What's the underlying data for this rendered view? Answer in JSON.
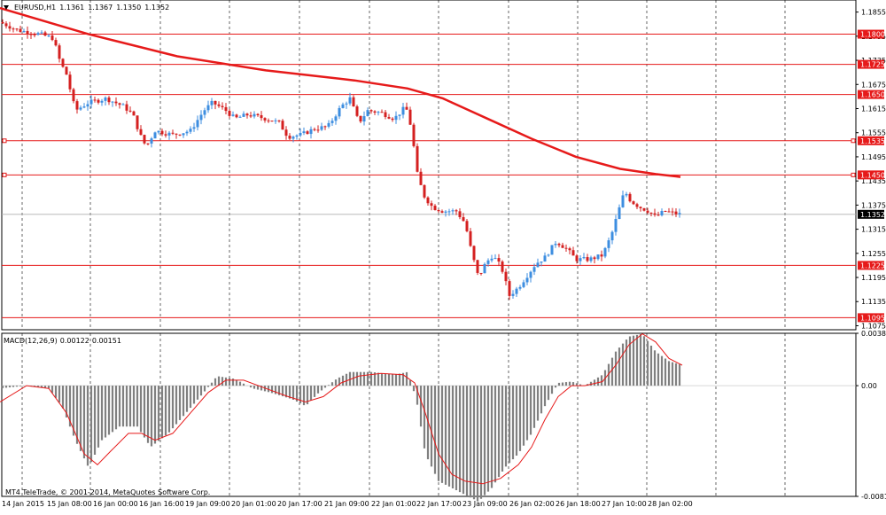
{
  "header": {
    "symbol": "EURUSD,H1",
    "open": "1.1361",
    "high": "1.1367",
    "low": "1.1350",
    "close": "1.1352"
  },
  "macd_header": {
    "name": "MACD(12,26,9)",
    "main": "0.00122",
    "signal": "0.00151"
  },
  "copyright": "MT4 TeleTrade, © 2001-2014, MetaQuotes Software Corp.",
  "colors": {
    "bull": "#3d8ee0",
    "bear": "#d42020",
    "ma": "#e61a1a",
    "level": "#e61a1a",
    "grid": "#000000",
    "histogram": "#808080",
    "signal": "#e61a1a"
  },
  "chart_data": [
    {
      "type": "candlestick",
      "title": "",
      "y_ticks": [
        "1.1855",
        "1.1795",
        "1.1735",
        "1.1675",
        "1.1615",
        "1.1555",
        "1.1495",
        "1.1435",
        "1.1375",
        "1.1315",
        "1.1255",
        "1.1195",
        "1.1135",
        "1.1075"
      ],
      "ylim": [
        1.1065,
        1.1885
      ],
      "x_ticks": [
        "14 Jan 2015",
        "15 Jan 08:00",
        "16 Jan 00:00",
        "16 Jan 16:00",
        "19 Jan 09:00",
        "20 Jan 01:00",
        "20 Jan 17:00",
        "21 Jan 09:00",
        "22 Jan 01:00",
        "22 Jan 17:00",
        "23 Jan 09:00",
        "26 Jan 02:00",
        "26 Jan 18:00",
        "27 Jan 10:00",
        "28 Jan 02:00"
      ],
      "levels": [
        "1.1800",
        "1.1725",
        "1.1650",
        "1.1535",
        "1.1450",
        "1.1225",
        "1.1095"
      ],
      "current_price": "1.1352",
      "grid": true,
      "ma_anchors": [
        [
          0,
          1.1865
        ],
        [
          100,
          1.18
        ],
        [
          200,
          1.1745
        ],
        [
          300,
          1.171
        ],
        [
          400,
          1.1685
        ],
        [
          460,
          1.1665
        ],
        [
          500,
          1.164
        ],
        [
          550,
          1.159
        ],
        [
          600,
          1.154
        ],
        [
          650,
          1.1495
        ],
        [
          700,
          1.1465
        ],
        [
          740,
          1.1452
        ],
        [
          768,
          1.1445
        ]
      ],
      "price_anchors": [
        [
          0,
          1.183
        ],
        [
          20,
          1.181
        ],
        [
          45,
          1.18
        ],
        [
          60,
          1.179
        ],
        [
          68,
          1.173
        ],
        [
          75,
          1.17
        ],
        [
          85,
          1.161
        ],
        [
          100,
          1.163
        ],
        [
          120,
          1.164
        ],
        [
          140,
          1.162
        ],
        [
          150,
          1.16
        ],
        [
          158,
          1.155
        ],
        [
          165,
          1.152
        ],
        [
          175,
          1.156
        ],
        [
          195,
          1.155
        ],
        [
          215,
          1.156
        ],
        [
          230,
          1.161
        ],
        [
          240,
          1.163
        ],
        [
          255,
          1.161
        ],
        [
          265,
          1.159
        ],
        [
          280,
          1.16
        ],
        [
          300,
          1.159
        ],
        [
          315,
          1.158
        ],
        [
          325,
          1.1545
        ],
        [
          340,
          1.155
        ],
        [
          355,
          1.1565
        ],
        [
          370,
          1.157
        ],
        [
          385,
          1.162
        ],
        [
          395,
          1.164
        ],
        [
          405,
          1.158
        ],
        [
          415,
          1.161
        ],
        [
          430,
          1.1605
        ],
        [
          445,
          1.159
        ],
        [
          458,
          1.162
        ],
        [
          465,
          1.156
        ],
        [
          470,
          1.146
        ],
        [
          478,
          1.14
        ],
        [
          488,
          1.137
        ],
        [
          500,
          1.136
        ],
        [
          515,
          1.136
        ],
        [
          525,
          1.133
        ],
        [
          532,
          1.126
        ],
        [
          540,
          1.1195
        ],
        [
          548,
          1.123
        ],
        [
          556,
          1.125
        ],
        [
          566,
          1.122
        ],
        [
          575,
          1.115
        ],
        [
          585,
          1.117
        ],
        [
          595,
          1.12
        ],
        [
          605,
          1.123
        ],
        [
          615,
          1.1245
        ],
        [
          628,
          1.1285
        ],
        [
          640,
          1.1265
        ],
        [
          650,
          1.124
        ],
        [
          665,
          1.124
        ],
        [
          680,
          1.125
        ],
        [
          690,
          1.13
        ],
        [
          698,
          1.136
        ],
        [
          705,
          1.141
        ],
        [
          712,
          1.1385
        ],
        [
          722,
          1.137
        ],
        [
          732,
          1.136
        ],
        [
          740,
          1.1345
        ],
        [
          750,
          1.136
        ],
        [
          760,
          1.1355
        ],
        [
          768,
          1.1352
        ]
      ]
    },
    {
      "type": "bar",
      "title": "",
      "y_ticks": [
        "0.00384",
        "0.00",
        "-0.00812"
      ],
      "ylim": [
        -0.00812,
        0.00384
      ],
      "hist_anchors": [
        [
          0,
          -0.0002
        ],
        [
          30,
          0.0
        ],
        [
          55,
          -0.0002
        ],
        [
          70,
          -0.0015
        ],
        [
          85,
          -0.004
        ],
        [
          100,
          -0.006
        ],
        [
          115,
          -0.004
        ],
        [
          135,
          -0.003
        ],
        [
          155,
          -0.003
        ],
        [
          170,
          -0.0045
        ],
        [
          190,
          -0.0035
        ],
        [
          210,
          -0.002
        ],
        [
          230,
          -0.0005
        ],
        [
          245,
          0.0007
        ],
        [
          265,
          0.0005
        ],
        [
          285,
          -0.0002
        ],
        [
          305,
          -0.0005
        ],
        [
          330,
          -0.001
        ],
        [
          345,
          -0.0015
        ],
        [
          360,
          -0.0005
        ],
        [
          380,
          0.0005
        ],
        [
          395,
          0.001
        ],
        [
          420,
          0.001
        ],
        [
          445,
          0.0008
        ],
        [
          460,
          0.001
        ],
        [
          470,
          -0.001
        ],
        [
          480,
          -0.005
        ],
        [
          495,
          -0.007
        ],
        [
          510,
          -0.0075
        ],
        [
          525,
          -0.008
        ],
        [
          540,
          -0.0085
        ],
        [
          555,
          -0.0075
        ],
        [
          570,
          -0.006
        ],
        [
          585,
          -0.005
        ],
        [
          600,
          -0.0035
        ],
        [
          615,
          -0.0015
        ],
        [
          630,
          0.0002
        ],
        [
          645,
          0.0003
        ],
        [
          660,
          0.0
        ],
        [
          680,
          0.0008
        ],
        [
          695,
          0.0025
        ],
        [
          710,
          0.0036
        ],
        [
          725,
          0.0038
        ],
        [
          740,
          0.0025
        ],
        [
          755,
          0.0018
        ],
        [
          770,
          0.0015
        ]
      ],
      "signal_anchors": [
        [
          0,
          -0.0012
        ],
        [
          30,
          0.0
        ],
        [
          55,
          -0.0002
        ],
        [
          75,
          -0.002
        ],
        [
          95,
          -0.005
        ],
        [
          110,
          -0.0058
        ],
        [
          125,
          -0.0048
        ],
        [
          145,
          -0.0035
        ],
        [
          160,
          -0.0035
        ],
        [
          175,
          -0.004
        ],
        [
          195,
          -0.0035
        ],
        [
          215,
          -0.002
        ],
        [
          235,
          -0.0005
        ],
        [
          255,
          0.0004
        ],
        [
          275,
          0.0004
        ],
        [
          300,
          -0.0002
        ],
        [
          325,
          -0.0008
        ],
        [
          345,
          -0.0012
        ],
        [
          365,
          -0.0008
        ],
        [
          385,
          0.0002
        ],
        [
          405,
          0.0007
        ],
        [
          430,
          0.0009
        ],
        [
          455,
          0.0008
        ],
        [
          468,
          0.0002
        ],
        [
          480,
          -0.002
        ],
        [
          495,
          -0.005
        ],
        [
          510,
          -0.0065
        ],
        [
          525,
          -0.007
        ],
        [
          545,
          -0.0072
        ],
        [
          565,
          -0.0068
        ],
        [
          585,
          -0.0058
        ],
        [
          600,
          -0.0045
        ],
        [
          615,
          -0.0025
        ],
        [
          630,
          -0.0008
        ],
        [
          645,
          0.0
        ],
        [
          660,
          0.0
        ],
        [
          680,
          0.0003
        ],
        [
          695,
          0.0015
        ],
        [
          710,
          0.003
        ],
        [
          725,
          0.0038
        ],
        [
          740,
          0.0032
        ],
        [
          755,
          0.002
        ],
        [
          770,
          0.0015
        ]
      ]
    }
  ]
}
